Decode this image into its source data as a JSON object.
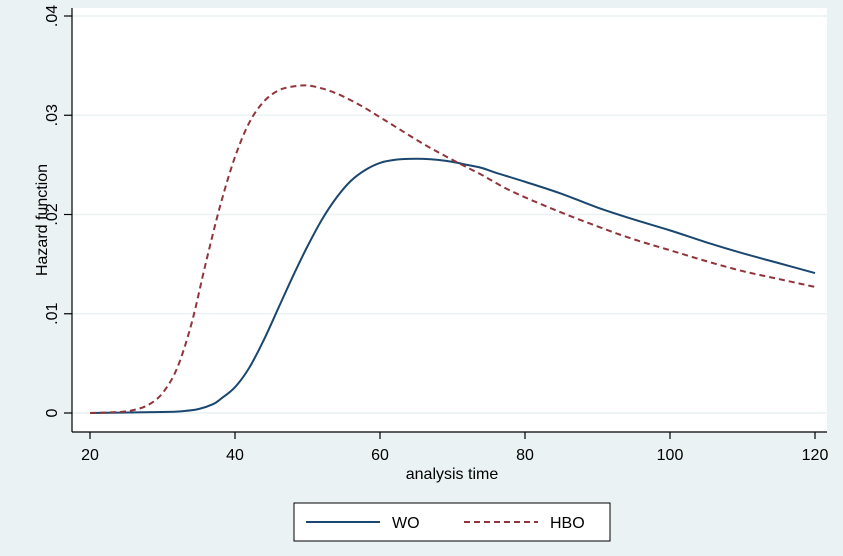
{
  "colors": {
    "background": "#eaf2f3",
    "plot_background": "#ffffff",
    "grid": "#eaf2f3",
    "wo": "#1a476f",
    "hbo": "#90353b"
  },
  "chart_data": {
    "type": "line",
    "title": "",
    "xlabel": "analysis time",
    "ylabel": "Hazard function",
    "xlim": [
      20,
      120
    ],
    "ylim": [
      0,
      0.04
    ],
    "x_ticks": [
      20,
      40,
      60,
      80,
      100,
      120
    ],
    "x_tick_labels": [
      "20",
      "40",
      "60",
      "80",
      "100",
      "120"
    ],
    "y_ticks": [
      0,
      0.01,
      0.02,
      0.03,
      0.04
    ],
    "y_tick_labels": [
      "0",
      ".01",
      ".02",
      ".03",
      ".04"
    ],
    "grid": true,
    "legend": {
      "position": "bottom-center"
    },
    "series": [
      {
        "name": "WO",
        "style": "solid",
        "x": [
          20,
          30,
          33,
          35,
          37,
          38,
          40,
          42,
          44,
          46,
          48,
          50,
          52,
          54,
          56,
          58,
          60,
          62,
          64,
          66,
          68,
          70,
          72,
          74,
          76,
          80,
          85,
          90,
          95,
          100,
          105,
          110,
          115,
          120
        ],
        "y": [
          0,
          0.0001,
          0.0002,
          0.0004,
          0.0009,
          0.0014,
          0.0026,
          0.0046,
          0.0074,
          0.0106,
          0.0138,
          0.0168,
          0.0195,
          0.0217,
          0.0234,
          0.0245,
          0.0252,
          0.0255,
          0.0256,
          0.0256,
          0.0255,
          0.0253,
          0.025,
          0.0247,
          0.0242,
          0.0233,
          0.0221,
          0.0207,
          0.0195,
          0.0184,
          0.0172,
          0.0161,
          0.0151,
          0.0141
        ]
      },
      {
        "name": "HBO",
        "style": "dashed",
        "x": [
          20,
          24,
          26,
          28,
          30,
          32,
          34,
          36,
          38,
          40,
          42,
          44,
          46,
          48,
          50,
          52,
          54,
          56,
          58,
          60,
          62,
          66,
          70,
          74,
          78,
          84,
          90,
          95,
          100,
          105,
          110,
          115,
          120
        ],
        "y": [
          0,
          0.0001,
          0.0003,
          0.0008,
          0.002,
          0.0045,
          0.009,
          0.0152,
          0.021,
          0.0258,
          0.0293,
          0.0314,
          0.0325,
          0.0329,
          0.033,
          0.0327,
          0.0322,
          0.0315,
          0.0307,
          0.0298,
          0.0289,
          0.0271,
          0.0255,
          0.024,
          0.0224,
          0.0205,
          0.0188,
          0.0175,
          0.0164,
          0.0153,
          0.0143,
          0.0135,
          0.0127
        ]
      }
    ]
  }
}
